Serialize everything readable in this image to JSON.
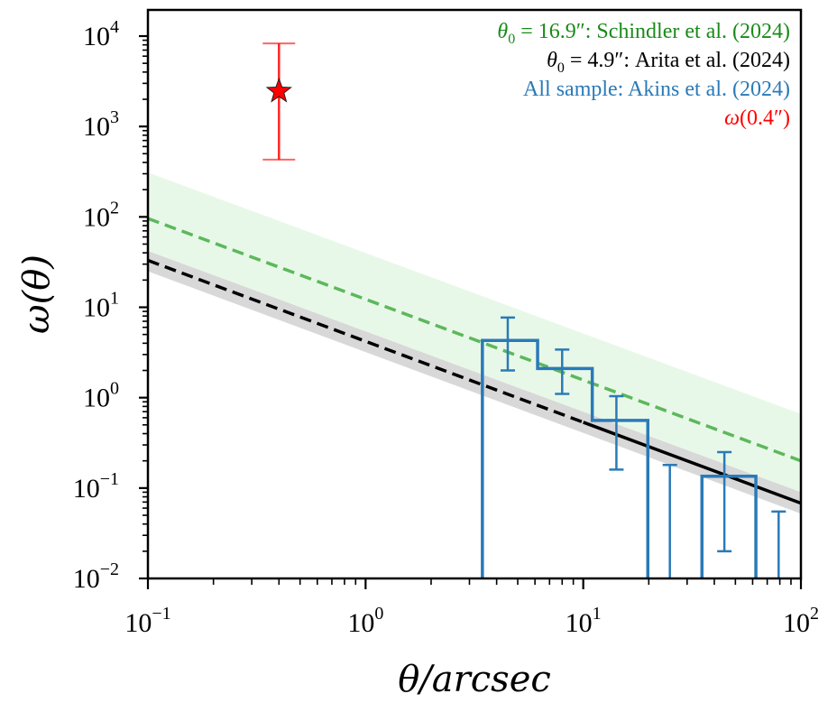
{
  "chart_data": {
    "type": "line",
    "title": "",
    "xlabel": "θ/arcsec",
    "ylabel": "ω(θ)",
    "xscale": "log",
    "yscale": "log",
    "xlim": [
      0.1,
      100
    ],
    "ylim": [
      0.01,
      20000
    ],
    "grid": false,
    "x_ticks": [
      {
        "value": 0.1,
        "base": "10",
        "exp": "−1"
      },
      {
        "value": 1,
        "base": "10",
        "exp": "0"
      },
      {
        "value": 10,
        "base": "10",
        "exp": "1"
      },
      {
        "value": 100,
        "base": "10",
        "exp": "2"
      }
    ],
    "y_ticks": [
      {
        "value": 0.01,
        "base": "10",
        "exp": "−2"
      },
      {
        "value": 0.1,
        "base": "10",
        "exp": "−1"
      },
      {
        "value": 1,
        "base": "10",
        "exp": "0"
      },
      {
        "value": 10,
        "base": "10",
        "exp": "1"
      },
      {
        "value": 100,
        "base": "10",
        "exp": "2"
      },
      {
        "value": 1000,
        "base": "10",
        "exp": "3"
      },
      {
        "value": 10000,
        "base": "10",
        "exp": "4"
      }
    ],
    "legend_position": "top-right",
    "legend": [
      {
        "prefix": "θ",
        "sub": "0",
        "rest": " = 16.9″: Schindler et al. (2024)",
        "color": "#1a8a1a"
      },
      {
        "prefix": "θ",
        "sub": "0",
        "rest": " = 4.9″: Arita et al. (2024)",
        "color": "#000000"
      },
      {
        "prefix": "",
        "sub": "",
        "rest": "All sample: Akins et al. (2024)",
        "color": "#2a7ab8"
      },
      {
        "prefix": "ω",
        "sub": "",
        "rest": "(0.4″)",
        "color": "#ff0000"
      }
    ],
    "series": [
      {
        "name": "Schindler et al. (2024) power law, θ0 = 16.9″",
        "kind": "dashed-line-with-band",
        "color": "#5cb85c",
        "band_color": "#e6f7e6",
        "x": [
          0.1,
          100
        ],
        "y": [
          96,
          0.2
        ],
        "band_upper": [
          310,
          0.66
        ],
        "band_lower": [
          42,
          0.09
        ]
      },
      {
        "name": "Arita et al. (2024) power law, θ0 = 4.9″",
        "kind": "line-with-band",
        "color": "#000000",
        "band_color": "#c8c8c8",
        "dashed_below_x": 10,
        "x": [
          0.1,
          100
        ],
        "y": [
          33,
          0.068
        ],
        "band_upper": [
          42,
          0.09
        ],
        "band_lower": [
          25,
          0.052
        ]
      },
      {
        "name": "All sample: Akins et al. (2024)",
        "kind": "step-histogram",
        "color": "#2a7ab8",
        "bin_edges": [
          3.44,
          6.17,
          11.0,
          19.8,
          35.1,
          62.1
        ],
        "values": [
          4.3,
          2.1,
          0.56,
          0,
          0.135
        ]
      },
      {
        "name": "Akins et al. (2024) error bars",
        "kind": "errorbars",
        "color": "#2a7ab8",
        "points": [
          {
            "x": 4.5,
            "upper": 7.7,
            "lower": 2.0
          },
          {
            "x": 8.0,
            "upper": 3.4,
            "lower": 1.1
          },
          {
            "x": 14.2,
            "upper": 1.04,
            "lower": 0.16
          },
          {
            "x": 25.0,
            "upper": 0.18,
            "lower": 0.01
          },
          {
            "x": 44.5,
            "upper": 0.25,
            "lower": 0.02
          },
          {
            "x": 79.0,
            "upper": 0.055,
            "lower": 0.01
          }
        ]
      },
      {
        "name": "ω(0.4″)",
        "kind": "star-point",
        "color": "#ff0000",
        "x": 0.4,
        "y": 2450,
        "upper": 8300,
        "lower": 430
      }
    ]
  }
}
